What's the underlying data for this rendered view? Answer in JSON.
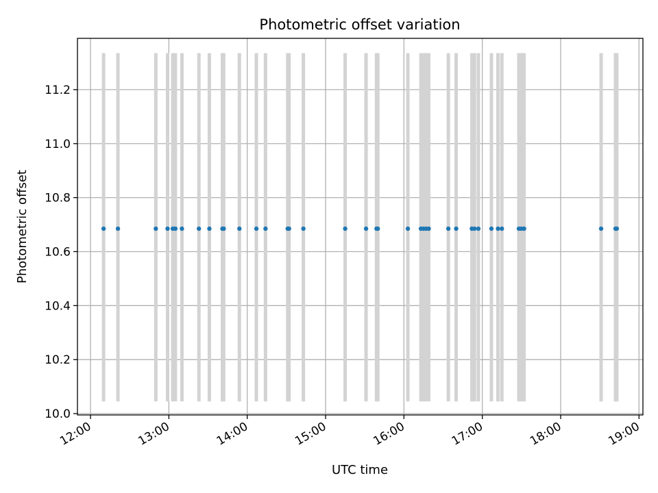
{
  "chart_data": {
    "type": "scatter",
    "title": "Photometric offset variation",
    "xlabel": "UTC time",
    "ylabel": "Photometric offset",
    "x_axis_type": "time",
    "x_range": [
      "11:50",
      "19:03"
    ],
    "y_range": [
      9.995,
      11.39
    ],
    "grid": true,
    "x_ticks": [
      "12:00",
      "13:00",
      "14:00",
      "15:00",
      "16:00",
      "17:00",
      "18:00",
      "19:00"
    ],
    "y_ticks": [
      "10.0",
      "10.2",
      "10.4",
      "10.6",
      "10.8",
      "11.0",
      "11.2"
    ],
    "colors": {
      "points": "#1f77b4",
      "bands": "#d3d3d3",
      "grid": "#b0b0b0"
    },
    "bands": {
      "y_range": [
        10.045,
        11.335
      ],
      "x": [
        "12:10",
        "12:21",
        "12:50",
        "12:59",
        "13:03",
        "13:05",
        "13:10",
        "13:23",
        "13:31",
        "13:41",
        "13:42",
        "13:54",
        "14:07",
        "14:14",
        "14:31",
        "14:32",
        "14:43",
        "15:15",
        "15:31",
        "15:39",
        "15:40",
        "16:03",
        "16:13",
        "16:15",
        "16:17",
        "16:19",
        "16:34",
        "16:40",
        "16:52",
        "16:54",
        "16:57",
        "17:07",
        "17:12",
        "17:15",
        "17:28",
        "17:30",
        "17:32",
        "18:31",
        "18:42",
        "18:43"
      ]
    },
    "series": [
      {
        "x": [
          "12:10",
          "12:21",
          "12:50",
          "12:59",
          "13:03",
          "13:05",
          "13:10",
          "13:23",
          "13:31",
          "13:41",
          "13:42",
          "13:54",
          "14:07",
          "14:14",
          "14:31",
          "14:32",
          "14:43",
          "15:15",
          "15:31",
          "15:39",
          "15:40",
          "16:03",
          "16:13",
          "16:15",
          "16:17",
          "16:19",
          "16:34",
          "16:40",
          "16:52",
          "16:54",
          "16:57",
          "17:07",
          "17:12",
          "17:15",
          "17:28",
          "17:30",
          "17:32",
          "18:31",
          "18:42",
          "18:43"
        ],
        "y": [
          10.685,
          10.685,
          10.685,
          10.685,
          10.685,
          10.685,
          10.685,
          10.685,
          10.685,
          10.685,
          10.685,
          10.685,
          10.685,
          10.685,
          10.685,
          10.685,
          10.685,
          10.685,
          10.685,
          10.685,
          10.685,
          10.685,
          10.685,
          10.685,
          10.685,
          10.685,
          10.685,
          10.685,
          10.685,
          10.685,
          10.685,
          10.685,
          10.685,
          10.685,
          10.685,
          10.685,
          10.685,
          10.685,
          10.685,
          10.685
        ]
      }
    ]
  }
}
